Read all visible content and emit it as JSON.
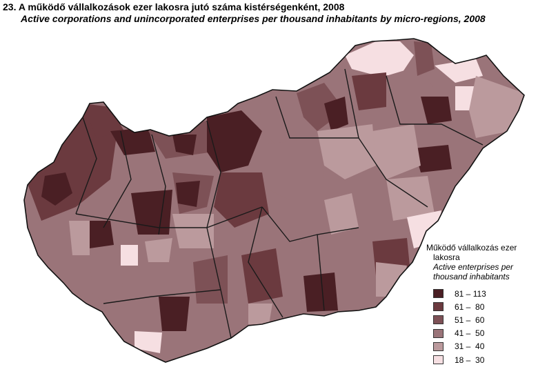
{
  "header": {
    "title_hu": "23. A működő vállalkozások ezer lakosra jutó száma kistérségenként, 2008",
    "title_en": "Active corporations and unincorporated enterprises per thousand inhabitants by micro-regions, 2008"
  },
  "legend": {
    "title_hu_line1": "Működő vállalkozás ezer",
    "title_hu_line2": "lakosra",
    "title_en_line1": "Active enterprises per",
    "title_en_line2": "thousand inhabitants",
    "classes": [
      {
        "range": "81 – 113",
        "color": "#4a1f24"
      },
      {
        "range": "61 –  80",
        "color": "#6b3a3f"
      },
      {
        "range": "51 –  60",
        "color": "#7d5156"
      },
      {
        "range": "41 –  50",
        "color": "#9a7479"
      },
      {
        "range": "31 –  40",
        "color": "#bb9a9d"
      },
      {
        "range": "18 –  30",
        "color": "#f6dfe2"
      }
    ]
  }
}
